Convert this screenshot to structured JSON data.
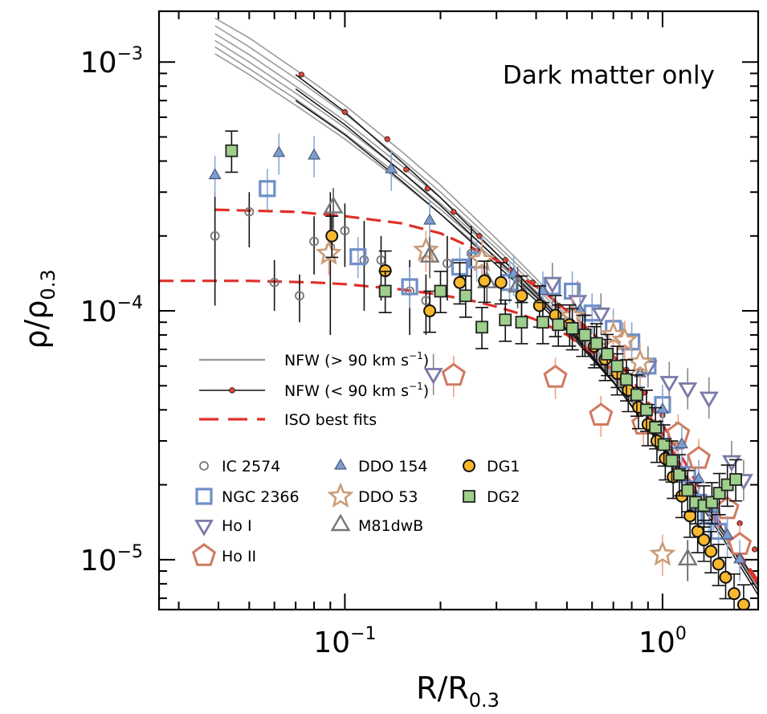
{
  "chart_data": {
    "type": "scatter",
    "annotation": "Dark matter only",
    "xlabel": {
      "main": "R/R",
      "sub": "0.3"
    },
    "ylabel": {
      "main": "ρ/ρ",
      "sub": "0.3"
    },
    "x_scale": "log",
    "y_scale": "log",
    "xlim": [
      0.026,
      2.0
    ],
    "ylim": [
      6.3e-06,
      0.0016
    ],
    "x_ticks": [
      {
        "value": 0.1,
        "base": "10",
        "exp": "−1"
      },
      {
        "value": 1.0,
        "base": "10",
        "exp": "0"
      }
    ],
    "y_ticks": [
      {
        "value": 1e-05,
        "base": "10",
        "exp": "−5"
      },
      {
        "value": 0.0001,
        "base": "10",
        "exp": "−4"
      },
      {
        "value": 0.001,
        "base": "10",
        "exp": "−3"
      }
    ],
    "legend_lines": [
      {
        "label": "NFW (> 90 km s",
        "sup": "−1",
        "close": ")",
        "style": "gray"
      },
      {
        "label": "NFW (< 90 km s",
        "sup": "−1",
        "close": ")",
        "style": "black-red-dots"
      },
      {
        "label": "ISO best fits",
        "style": "red-dashed"
      }
    ],
    "legend_markers": [
      {
        "label": "IC 2574",
        "marker": "circle-open-small"
      },
      {
        "label": "NGC 2366",
        "marker": "square-open"
      },
      {
        "label": "Ho I",
        "marker": "triangle-down-open"
      },
      {
        "label": "Ho II",
        "marker": "pentagon-open"
      },
      {
        "label": "DDO 154",
        "marker": "triangle-up-blue"
      },
      {
        "label": "DDO 53",
        "marker": "star-open"
      },
      {
        "label": "M81dwB",
        "marker": "triangle-up-open-gray"
      },
      {
        "label": "DG1",
        "marker": "circle-orange"
      },
      {
        "label": "DG2",
        "marker": "square-green"
      }
    ],
    "colors": {
      "nfw_gray": "#9a9a9a",
      "nfw_black": "#111111",
      "nfw_dot": "#e0443a",
      "iso_red": "#e0302a",
      "ic2574": "#777777",
      "ngc2366_edge": "#6f8fc8",
      "ho1_edge": "#7a7aa8",
      "ho2_edge": "#d07a60",
      "ddo154_fill": "#7c9cd0",
      "ddo53_edge": "#c99c78",
      "m81dwb_edge": "#777777",
      "dg1_fill": "#f8b82e",
      "dg2_fill": "#9ecf8c",
      "errbar_orange": "#f0a080",
      "errbar_blue": "#8aa8d8"
    },
    "series": [
      {
        "name": "IC 2574",
        "marker": "circle-open-small",
        "points": [
          [
            0.039,
            0.0002
          ],
          [
            0.05,
            0.00025
          ],
          [
            0.06,
            0.00013
          ],
          [
            0.072,
            0.000115
          ],
          [
            0.08,
            0.00019
          ],
          [
            0.09,
            0.00018
          ],
          [
            0.1,
            0.00021
          ],
          [
            0.115,
            0.00016
          ],
          [
            0.13,
            0.00016
          ],
          [
            0.16,
            0.00012
          ],
          [
            0.18,
            0.00011
          ],
          [
            0.21,
            0.000155
          ],
          [
            0.25,
            0.00017
          ]
        ],
        "errors": [
          [
            0.000105,
            0.0003
          ],
          [
            0.00018,
            0.0003
          ],
          [
            0.0001,
            0.00016
          ],
          [
            9e-05,
            0.00014
          ],
          [
            0.00014,
            0.00024
          ],
          [
            8e-05,
            0.0003
          ],
          [
            0.00015,
            0.00027
          ],
          [
            0.0001,
            0.00023
          ],
          [
            0.00011,
            0.0002
          ],
          [
            8e-05,
            0.00016
          ],
          [
            8e-05,
            0.00014
          ],
          [
            0.00011,
            0.0002
          ],
          [
            0.00012,
            0.00022
          ]
        ]
      },
      {
        "name": "NGC 2366",
        "marker": "square-open",
        "points": [
          [
            0.057,
            0.00031
          ],
          [
            0.11,
            0.000165
          ],
          [
            0.16,
            0.000125
          ],
          [
            0.23,
            0.00015
          ],
          [
            0.26,
            0.00016
          ],
          [
            0.33,
            0.00013
          ],
          [
            0.45,
            0.000125
          ],
          [
            0.52,
            0.00012
          ],
          [
            0.6,
            9.8e-05
          ],
          [
            0.7,
            8.5e-05
          ],
          [
            0.8,
            7.5e-05
          ],
          [
            0.9,
            6e-05
          ],
          [
            1.0,
            4.2e-05
          ],
          [
            1.1,
            3e-05
          ],
          [
            1.2,
            2.2e-05
          ],
          [
            1.3,
            1.7e-05
          ],
          [
            1.4,
            1.5e-05
          ],
          [
            1.5,
            1.3e-05
          ]
        ]
      },
      {
        "name": "Ho I",
        "marker": "triangle-down-open",
        "points": [
          [
            0.19,
            5.6e-05
          ],
          [
            0.45,
            0.00013
          ],
          [
            0.54,
            0.00011
          ],
          [
            0.64,
            9.8e-05
          ],
          [
            0.75,
            7.5e-05
          ],
          [
            0.9,
            6e-05
          ],
          [
            1.05,
            5.2e-05
          ],
          [
            1.2,
            4.9e-05
          ],
          [
            1.4,
            4.5e-05
          ],
          [
            1.65,
            2.5e-05
          ],
          [
            1.8,
            2.1e-05
          ]
        ]
      },
      {
        "name": "Ho II",
        "marker": "pentagon-open",
        "points": [
          [
            0.22,
            5.5e-05
          ],
          [
            0.46,
            5.4e-05
          ],
          [
            0.64,
            3.8e-05
          ],
          [
            0.87,
            3.5e-05
          ],
          [
            1.12,
            3.2e-05
          ],
          [
            1.3,
            2.55e-05
          ],
          [
            1.6,
            1.6e-05
          ],
          [
            1.75,
            1.15e-05
          ]
        ]
      },
      {
        "name": "DDO 154",
        "marker": "triangle-up-blue",
        "points": [
          [
            0.039,
            0.00035
          ],
          [
            0.062,
            0.00043
          ],
          [
            0.08,
            0.00042
          ],
          [
            0.14,
            0.00037
          ],
          [
            0.185,
            0.00023
          ],
          [
            0.27,
            0.000165
          ],
          [
            0.34,
            0.00014
          ],
          [
            0.42,
            0.00012
          ],
          [
            0.55,
            0.0001
          ],
          [
            0.7,
            7.8e-05
          ],
          [
            0.85,
            5.6e-05
          ],
          [
            1.0,
            4e-05
          ],
          [
            1.15,
            2.9e-05
          ],
          [
            1.3,
            2.1e-05
          ],
          [
            1.45,
            1.6e-05
          ],
          [
            1.6,
            1.25e-05
          ],
          [
            1.75,
            1e-05
          ]
        ]
      },
      {
        "name": "DDO 53",
        "marker": "star-open",
        "points": [
          [
            0.089,
            0.00017
          ],
          [
            0.18,
            0.000175
          ],
          [
            0.27,
            0.00016
          ],
          [
            0.52,
            9.5e-05
          ],
          [
            0.7,
            8e-05
          ],
          [
            0.76,
            7.6e-05
          ],
          [
            0.85,
            6.2e-05
          ],
          [
            1.0,
            1.05e-05
          ]
        ]
      },
      {
        "name": "M81dwB",
        "marker": "triangle-up-open-gray",
        "points": [
          [
            0.092,
            0.00026
          ],
          [
            0.185,
            0.000165
          ],
          [
            0.28,
            0.00013
          ],
          [
            0.35,
            0.000125
          ],
          [
            1.2,
            1e-05
          ]
        ]
      },
      {
        "name": "DG1",
        "marker": "circle-orange",
        "points": [
          [
            0.091,
            0.0002
          ],
          [
            0.134,
            0.000145
          ],
          [
            0.185,
            0.0001
          ],
          [
            0.23,
            0.00013
          ],
          [
            0.275,
            0.000132
          ],
          [
            0.31,
            0.00013
          ],
          [
            0.36,
            0.000115
          ],
          [
            0.41,
            0.000105
          ],
          [
            0.46,
            9.6e-05
          ],
          [
            0.51,
            8.8e-05
          ],
          [
            0.56,
            8e-05
          ],
          [
            0.61,
            7.2e-05
          ],
          [
            0.66,
            6.4e-05
          ],
          [
            0.72,
            5.6e-05
          ],
          [
            0.78,
            4.8e-05
          ],
          [
            0.84,
            4.1e-05
          ],
          [
            0.9,
            3.5e-05
          ],
          [
            0.96,
            3e-05
          ],
          [
            1.02,
            2.55e-05
          ],
          [
            1.08,
            2.15e-05
          ],
          [
            1.15,
            1.8e-05
          ],
          [
            1.22,
            1.5e-05
          ],
          [
            1.29,
            1.3e-05
          ],
          [
            1.35,
            1.2e-05
          ],
          [
            1.42,
            1.08e-05
          ],
          [
            1.5,
            9.6e-06
          ],
          [
            1.58,
            8.5e-06
          ],
          [
            1.68,
            7.3e-06
          ],
          [
            1.8,
            6.6e-06
          ]
        ]
      },
      {
        "name": "DG2",
        "marker": "square-green",
        "points": [
          [
            0.044,
            0.00044
          ],
          [
            0.134,
            0.00012
          ],
          [
            0.2,
            0.00012
          ],
          [
            0.24,
            0.000115
          ],
          [
            0.27,
            8.6e-05
          ],
          [
            0.32,
            9.2e-05
          ],
          [
            0.36,
            9e-05
          ],
          [
            0.42,
            9e-05
          ],
          [
            0.47,
            8.8e-05
          ],
          [
            0.52,
            8.5e-05
          ],
          [
            0.57,
            8e-05
          ],
          [
            0.62,
            7.4e-05
          ],
          [
            0.67,
            6.7e-05
          ],
          [
            0.72,
            6e-05
          ],
          [
            0.77,
            5.3e-05
          ],
          [
            0.83,
            4.6e-05
          ],
          [
            0.89,
            4e-05
          ],
          [
            0.95,
            3.4e-05
          ],
          [
            1.01,
            2.9e-05
          ],
          [
            1.07,
            2.5e-05
          ],
          [
            1.13,
            2.2e-05
          ],
          [
            1.2,
            1.9e-05
          ],
          [
            1.27,
            1.7e-05
          ],
          [
            1.35,
            1.65e-05
          ],
          [
            1.43,
            1.7e-05
          ],
          [
            1.51,
            1.85e-05
          ],
          [
            1.6,
            2e-05
          ],
          [
            1.7,
            2.1e-05
          ]
        ]
      }
    ],
    "nfw_gray_curves": {
      "x": [
        0.039,
        0.05,
        0.07,
        0.1,
        0.15,
        0.2,
        0.3,
        0.4,
        0.5,
        0.7,
        1.0,
        1.5,
        2.0
      ],
      "curves": [
        [
          0.0015,
          0.00125,
          0.00093,
          0.00067,
          0.00044,
          0.00032,
          0.000195,
          0.000135,
          9.8e-05,
          5.8e-05,
          3.1e-05,
          1.4e-05,
          7.5e-06
        ],
        [
          0.0014,
          0.00115,
          0.00086,
          0.00062,
          0.00041,
          0.0003,
          0.000185,
          0.00013,
          9.5e-05,
          5.7e-05,
          3.05e-05,
          1.4e-05,
          7.6e-06
        ],
        [
          0.0013,
          0.00107,
          0.0008,
          0.00058,
          0.000385,
          0.000285,
          0.000178,
          0.000125,
          9.2e-05,
          5.6e-05,
          3e-05,
          1.4e-05,
          7.7e-06
        ],
        [
          0.00122,
          0.001,
          0.00075,
          0.000545,
          0.000365,
          0.00027,
          0.00017,
          0.00012,
          8.9e-05,
          5.5e-05,
          3e-05,
          1.4e-05,
          7.8e-06
        ],
        [
          0.00115,
          0.00094,
          0.00071,
          0.000515,
          0.000345,
          0.000256,
          0.000164,
          0.000116,
          8.7e-05,
          5.4e-05,
          2.95e-05,
          1.4e-05,
          7.9e-06
        ],
        [
          0.00108,
          0.00089,
          0.00067,
          0.00049,
          0.00033,
          0.000245,
          0.000158,
          0.000113,
          8.5e-05,
          5.35e-05,
          2.95e-05,
          1.4e-05,
          8e-06
        ]
      ]
    },
    "nfw_black_curves": {
      "x": [
        0.07,
        0.1,
        0.15,
        0.2,
        0.3,
        0.4,
        0.5,
        0.7,
        1.0,
        1.5,
        2.0
      ],
      "curves": [
        [
          0.00089,
          0.00063,
          0.0004,
          0.000285,
          0.00017,
          0.000118,
          8.7e-05,
          5.2e-05,
          2.8e-05,
          1.3e-05,
          7.2e-06
        ],
        [
          0.00078,
          0.00056,
          0.000365,
          0.000265,
          0.000162,
          0.000114,
          8.5e-05,
          5.2e-05,
          2.85e-05,
          1.35e-05,
          7.5e-06
        ],
        [
          0.0007,
          0.00051,
          0.000335,
          0.000245,
          0.000153,
          0.00011,
          8.3e-05,
          5.15e-05,
          2.9e-05,
          1.4e-05,
          7.9e-06
        ]
      ]
    },
    "nfw_dots": [
      [
        0.073,
        0.00089
      ],
      [
        0.1,
        0.00063
      ],
      [
        0.136,
        0.00049
      ],
      [
        0.156,
        0.00037
      ],
      [
        0.182,
        0.00031
      ],
      [
        0.22,
        0.00025
      ],
      [
        0.265,
        0.0002
      ],
      [
        0.32,
        0.00016
      ],
      [
        0.39,
        0.00013
      ],
      [
        0.47,
        0.000105
      ],
      [
        0.56,
        8.6e-05
      ],
      [
        0.66,
        7e-05
      ],
      [
        0.77,
        5.8e-05
      ],
      [
        0.88,
        4.7e-05
      ],
      [
        1.0,
        3.8e-05
      ],
      [
        1.15,
        3e-05
      ],
      [
        1.3,
        2.4e-05
      ],
      [
        1.5,
        1.9e-05
      ],
      [
        1.75,
        1.4e-05
      ],
      [
        1.95,
        1.1e-05
      ]
    ],
    "iso_curves": [
      {
        "x": [
          0.039,
          0.07,
          0.1,
          0.15,
          0.2,
          0.25,
          0.3,
          0.35,
          0.42,
          0.5,
          0.6,
          0.7,
          0.8,
          0.9,
          1.0,
          1.1,
          1.2,
          1.3,
          1.45,
          1.6,
          1.8,
          2.0
        ],
        "y": [
          0.000255,
          0.00025,
          0.00024,
          0.000225,
          0.000205,
          0.00018,
          0.00016,
          0.00014,
          0.00012,
          0.0001,
          8.2e-05,
          6.6e-05,
          5.3e-05,
          4.3e-05,
          3.5e-05,
          2.85e-05,
          2.35e-05,
          1.95e-05,
          1.55e-05,
          1.25e-05,
          1e-05,
          8.2e-06
        ]
      },
      {
        "x": [
          0.026,
          0.05,
          0.08,
          0.1,
          0.15,
          0.2,
          0.25,
          0.3,
          0.35,
          0.4,
          0.5,
          0.6,
          0.7,
          0.8,
          0.9,
          1.0,
          1.1,
          1.2,
          1.3,
          1.45,
          1.6,
          1.8,
          2.0
        ],
        "y": [
          0.000132,
          0.000132,
          0.00013,
          0.000128,
          0.000122,
          0.000116,
          0.00011,
          0.000104,
          9.8e-05,
          9.2e-05,
          8e-05,
          6.8e-05,
          5.7e-05,
          4.7e-05,
          3.9e-05,
          3.2e-05,
          2.6e-05,
          2.15e-05,
          1.8e-05,
          1.45e-05,
          1.2e-05,
          9.7e-06,
          8e-06
        ]
      }
    ]
  }
}
